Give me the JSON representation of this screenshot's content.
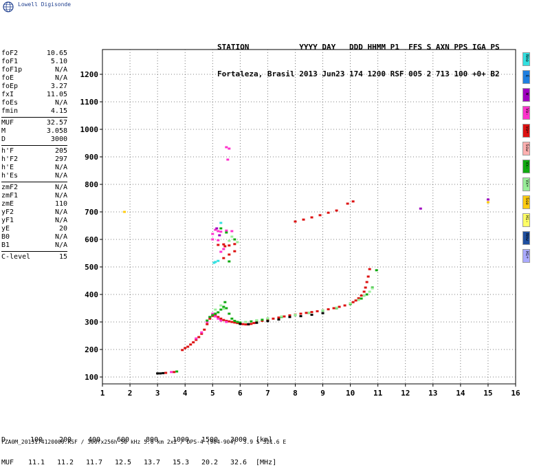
{
  "logo": {
    "text": "Lowell Digisonde",
    "icon": "globe-icon"
  },
  "header": {
    "line1": "STATION           YYYY DAY   DDD HHMM P1  FFS S AXN PPS IGA PS",
    "line2": "Fortaleza, Brasil 2013 Jun23 174 1200 RSF 005 2 713 100 +0+ B2"
  },
  "params": {
    "group1": [
      {
        "k": "foF2",
        "v": "10.65"
      },
      {
        "k": "foF1",
        "v": "5.10"
      },
      {
        "k": "foF1p",
        "v": "N/A"
      },
      {
        "k": "foE",
        "v": "N/A"
      },
      {
        "k": "foEp",
        "v": "3.27"
      },
      {
        "k": "fxI",
        "v": "11.05"
      },
      {
        "k": "foEs",
        "v": "N/A"
      },
      {
        "k": "fmin",
        "v": "4.15"
      }
    ],
    "group2": [
      {
        "k": "MUF",
        "v": "32.57"
      },
      {
        "k": "M",
        "v": "3.058"
      },
      {
        "k": "D",
        "v": "3000"
      }
    ],
    "group3": [
      {
        "k": "h'F",
        "v": "205"
      },
      {
        "k": "h'F2",
        "v": "297"
      },
      {
        "k": "h'E",
        "v": "N/A"
      },
      {
        "k": "h'Es",
        "v": "N/A"
      }
    ],
    "group4": [
      {
        "k": "zmF2",
        "v": "N/A"
      },
      {
        "k": "zmF1",
        "v": "N/A"
      },
      {
        "k": "zmE",
        "v": "110"
      },
      {
        "k": "yF2",
        "v": "N/A"
      },
      {
        "k": "yF1",
        "v": "N/A"
      },
      {
        "k": "yE",
        "v": "20"
      },
      {
        "k": "B0",
        "v": "N/A"
      },
      {
        "k": "B1",
        "v": "N/A"
      }
    ],
    "group5": [
      {
        "k": "C-level",
        "v": "15"
      }
    ]
  },
  "legend": [
    {
      "label": "Nno",
      "color": "#33e0e0"
    },
    {
      "label": "E",
      "color": "#1f7fe0"
    },
    {
      "label": "W",
      "color": "#a000c0"
    },
    {
      "label": "Vo-",
      "color": "#ff33cc"
    },
    {
      "label": "Vo+",
      "color": "#dd1111"
    },
    {
      "label": "Ssw",
      "color": "#ffb0b0"
    },
    {
      "label": "Vx-",
      "color": "#11aa11"
    },
    {
      "label": "Vx+",
      "color": "#99ee99"
    },
    {
      "label": "Sse",
      "color": "#ffcc11"
    },
    {
      "label": "Hi-",
      "color": "#ffff66"
    },
    {
      "label": "Nnw",
      "color": "#1f4f9f"
    },
    {
      "label": "Hi+",
      "color": "#aaaaff"
    }
  ],
  "muf_table": {
    "d_label": "D",
    "d_values": [
      "100",
      "200",
      "400",
      "600",
      "800",
      "1000",
      "1500",
      "3000"
    ],
    "d_unit": "[km]",
    "muf_label": "MUF",
    "muf_values": [
      "11.1",
      "11.2",
      "11.7",
      "12.5",
      "13.7",
      "15.3",
      "20.2",
      "32.6"
    ],
    "muf_unit": "[MHz]"
  },
  "footer": "FZA0M_2013174120000.RSF / 300fx256h 50 kHz 5.0 km 2x2 / DPS-4 (904-904)  3.9 S 321.6 E",
  "chart_data": {
    "type": "scatter",
    "title": "",
    "xlabel": "",
    "ylabel": "",
    "xlim": [
      1,
      16
    ],
    "ylim": [
      75,
      1290
    ],
    "x_ticks": [
      1,
      2,
      3,
      4,
      5,
      6,
      7,
      8,
      9,
      10,
      11,
      12,
      13,
      14,
      15,
      16
    ],
    "y_ticks": [
      100,
      200,
      300,
      400,
      500,
      600,
      700,
      800,
      900,
      1000,
      1100,
      1200
    ],
    "grid": true,
    "series": [
      {
        "color": "#dd1111",
        "points": [
          [
            3.9,
            198
          ],
          [
            4.0,
            205
          ],
          [
            4.1,
            210
          ],
          [
            4.2,
            218
          ],
          [
            4.3,
            226
          ],
          [
            4.4,
            235
          ],
          [
            4.5,
            245
          ],
          [
            4.6,
            257
          ],
          [
            4.7,
            272
          ],
          [
            4.8,
            292
          ],
          [
            4.9,
            312
          ],
          [
            5.0,
            322
          ],
          [
            5.1,
            325
          ],
          [
            5.2,
            318
          ],
          [
            5.3,
            312
          ],
          [
            5.4,
            307
          ],
          [
            5.5,
            304
          ],
          [
            5.6,
            302
          ],
          [
            5.7,
            300
          ],
          [
            5.8,
            298
          ],
          [
            5.9,
            296
          ],
          [
            6.0,
            294
          ],
          [
            6.1,
            292
          ],
          [
            6.2,
            291
          ],
          [
            6.3,
            291
          ],
          [
            6.4,
            293
          ],
          [
            6.5,
            296
          ],
          [
            6.6,
            299
          ],
          [
            6.8,
            304
          ],
          [
            7.0,
            308
          ],
          [
            7.2,
            312
          ],
          [
            7.4,
            316
          ],
          [
            7.6,
            320
          ],
          [
            7.8,
            324
          ],
          [
            8.0,
            327
          ],
          [
            8.2,
            330
          ],
          [
            8.4,
            333
          ],
          [
            8.6,
            336
          ],
          [
            8.8,
            339
          ],
          [
            9.0,
            342
          ],
          [
            9.2,
            346
          ],
          [
            9.4,
            350
          ],
          [
            9.6,
            355
          ],
          [
            9.8,
            360
          ],
          [
            10.0,
            367
          ],
          [
            10.1,
            372
          ],
          [
            10.2,
            378
          ],
          [
            10.3,
            386
          ],
          [
            10.4,
            396
          ],
          [
            10.5,
            410
          ],
          [
            10.55,
            425
          ],
          [
            10.6,
            445
          ],
          [
            10.65,
            465
          ],
          [
            10.7,
            492
          ],
          [
            8.0,
            665
          ],
          [
            8.3,
            672
          ],
          [
            8.6,
            680
          ],
          [
            8.9,
            688
          ],
          [
            9.2,
            697
          ],
          [
            9.5,
            705
          ],
          [
            9.9,
            730
          ],
          [
            10.1,
            738
          ],
          [
            5.2,
            580
          ],
          [
            5.4,
            582
          ],
          [
            5.6,
            578
          ],
          [
            5.8,
            583
          ],
          [
            5.4,
            532
          ],
          [
            5.6,
            545
          ],
          [
            5.8,
            557
          ],
          [
            5.45,
            575
          ],
          [
            3.3,
            115
          ],
          [
            3.6,
            118
          ]
        ]
      },
      {
        "color": "#ff33cc",
        "points": [
          [
            4.4,
            240
          ],
          [
            4.6,
            262
          ],
          [
            4.8,
            300
          ],
          [
            4.9,
            318
          ],
          [
            5.0,
            330
          ],
          [
            5.1,
            320
          ],
          [
            5.2,
            312
          ],
          [
            5.3,
            305
          ],
          [
            5.5,
            300
          ],
          [
            5.0,
            620
          ],
          [
            5.1,
            635
          ],
          [
            5.2,
            630
          ],
          [
            5.3,
            628
          ],
          [
            5.5,
            632
          ],
          [
            5.7,
            630
          ],
          [
            5.0,
            600
          ],
          [
            5.2,
            597
          ],
          [
            5.5,
            935
          ],
          [
            5.6,
            930
          ],
          [
            5.55,
            890
          ],
          [
            5.3,
            555
          ],
          [
            5.4,
            565
          ],
          [
            3.5,
            118
          ]
        ]
      },
      {
        "color": "#11aa11",
        "points": [
          [
            4.8,
            305
          ],
          [
            4.9,
            318
          ],
          [
            5.0,
            325
          ],
          [
            5.1,
            330
          ],
          [
            5.2,
            335
          ],
          [
            5.3,
            345
          ],
          [
            5.4,
            355
          ],
          [
            5.45,
            372
          ],
          [
            5.5,
            350
          ],
          [
            5.6,
            330
          ],
          [
            5.7,
            312
          ],
          [
            5.8,
            304
          ],
          [
            5.9,
            300
          ],
          [
            6.0,
            298
          ],
          [
            6.2,
            300
          ],
          [
            6.4,
            302
          ],
          [
            6.6,
            305
          ],
          [
            6.8,
            308
          ],
          [
            7.0,
            312
          ],
          [
            7.5,
            318
          ],
          [
            8.0,
            325
          ],
          [
            8.5,
            333
          ],
          [
            9.0,
            341
          ],
          [
            9.5,
            350
          ],
          [
            10.0,
            365
          ],
          [
            10.4,
            385
          ],
          [
            10.6,
            400
          ],
          [
            10.8,
            425
          ],
          [
            10.95,
            488
          ],
          [
            5.3,
            640
          ],
          [
            5.5,
            625
          ],
          [
            5.8,
            600
          ],
          [
            5.6,
            520
          ],
          [
            3.7,
            120
          ]
        ]
      },
      {
        "color": "#99ee99",
        "points": [
          [
            6.2,
            300
          ],
          [
            6.6,
            306
          ],
          [
            7.0,
            313
          ],
          [
            7.5,
            320
          ],
          [
            8.0,
            326
          ],
          [
            8.5,
            334
          ],
          [
            9.0,
            342
          ],
          [
            9.5,
            352
          ],
          [
            10.0,
            368
          ],
          [
            10.3,
            380
          ],
          [
            10.5,
            395
          ],
          [
            10.7,
            410
          ],
          [
            10.8,
            422
          ],
          [
            5.1,
            345
          ],
          [
            5.3,
            360
          ],
          [
            5.4,
            348
          ],
          [
            5.6,
            595
          ],
          [
            5.7,
            610
          ],
          [
            5.9,
            590
          ]
        ]
      },
      {
        "color": "#000000",
        "points": [
          [
            3.0,
            113
          ],
          [
            3.1,
            113
          ],
          [
            3.2,
            114
          ],
          [
            6.0,
            293
          ],
          [
            6.3,
            292
          ],
          [
            6.6,
            297
          ],
          [
            7.0,
            303
          ],
          [
            7.4,
            309
          ],
          [
            7.8,
            318
          ],
          [
            8.2,
            321
          ],
          [
            8.6,
            326
          ],
          [
            9.0,
            332
          ]
        ]
      },
      {
        "color": "#33e0e0",
        "points": [
          [
            5.1,
            518
          ],
          [
            5.2,
            522
          ],
          [
            5.05,
            515
          ],
          [
            5.3,
            660
          ]
        ]
      },
      {
        "color": "#a000c0",
        "points": [
          [
            5.15,
            640
          ],
          [
            5.25,
            615
          ],
          [
            12.55,
            712
          ],
          [
            15.0,
            745
          ]
        ]
      },
      {
        "color": "#ffcc11",
        "points": [
          [
            1.8,
            700
          ],
          [
            15.0,
            735
          ]
        ]
      }
    ]
  }
}
